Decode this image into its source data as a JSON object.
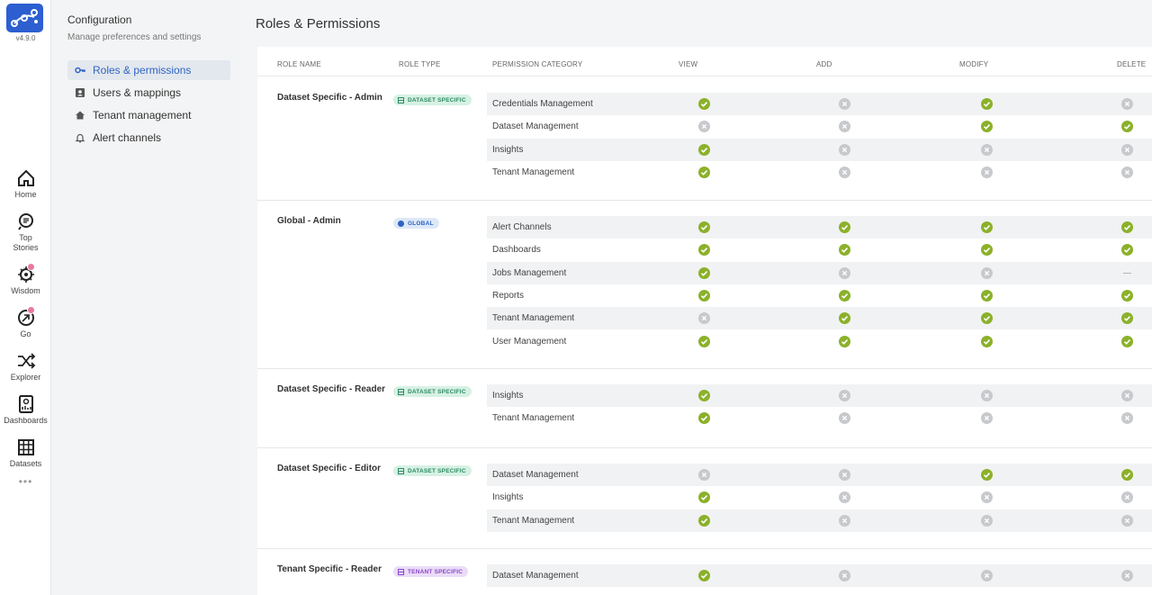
{
  "app": {
    "version": "v4.9.0"
  },
  "rail": {
    "items": [
      {
        "label": "Home",
        "icon": "home-icon"
      },
      {
        "label": "Top\nStories",
        "icon": "top-stories-icon"
      },
      {
        "label": "Wisdom",
        "icon": "wisdom-icon"
      },
      {
        "label": "Go",
        "icon": "go-icon"
      },
      {
        "label": "Explorer",
        "icon": "explorer-icon"
      },
      {
        "label": "Dashboards",
        "icon": "dashboards-icon"
      },
      {
        "label": "Datasets",
        "icon": "datasets-icon"
      }
    ],
    "more": "•••"
  },
  "sidebar": {
    "title": "Configuration",
    "subtitle": "Manage preferences and settings",
    "items": [
      {
        "label": "Roles & permissions",
        "icon": "key-icon",
        "active": true
      },
      {
        "label": "Users & mappings",
        "icon": "user-card-icon",
        "active": false
      },
      {
        "label": "Tenant management",
        "icon": "home-icon",
        "active": false
      },
      {
        "label": "Alert channels",
        "icon": "bell-icon",
        "active": false
      }
    ]
  },
  "page": {
    "title": "Roles & Permissions"
  },
  "table": {
    "headers": [
      "ROLE NAME",
      "ROLE TYPE",
      "PERMISSION CATEGORY",
      "VIEW",
      "ADD",
      "MODIFY",
      "DELETE"
    ],
    "colors": {
      "ok": "#8bb12a",
      "no": "#c7c9cc",
      "dataset": "#d6f1e4",
      "global": "#dde8f7",
      "tenant": "#eadcf7"
    },
    "groups": [
      {
        "name": "Dataset Specific - Admin",
        "type": "DATASET SPECIFIC",
        "type_kind": "dataset",
        "rows": [
          {
            "category": "Credentials Management",
            "perms": [
              "ok",
              "no",
              "ok",
              "no"
            ]
          },
          {
            "category": "Dataset Management",
            "perms": [
              "no",
              "no",
              "ok",
              "ok"
            ]
          },
          {
            "category": "Insights",
            "perms": [
              "ok",
              "no",
              "no",
              "no"
            ]
          },
          {
            "category": "Tenant Management",
            "perms": [
              "ok",
              "no",
              "no",
              "no"
            ]
          }
        ]
      },
      {
        "name": "Global - Admin",
        "type": "GLOBAL",
        "type_kind": "global",
        "rows": [
          {
            "category": "Alert Channels",
            "perms": [
              "ok",
              "ok",
              "ok",
              "ok"
            ]
          },
          {
            "category": "Dashboards",
            "perms": [
              "ok",
              "ok",
              "ok",
              "ok"
            ]
          },
          {
            "category": "Jobs Management",
            "perms": [
              "ok",
              "no",
              "no",
              "dash"
            ]
          },
          {
            "category": "Reports",
            "perms": [
              "ok",
              "ok",
              "ok",
              "ok"
            ]
          },
          {
            "category": "Tenant Management",
            "perms": [
              "no",
              "ok",
              "ok",
              "ok"
            ]
          },
          {
            "category": "User Management",
            "perms": [
              "ok",
              "ok",
              "ok",
              "ok"
            ]
          }
        ]
      },
      {
        "name": "Dataset Specific - Reader",
        "type": "DATASET SPECIFIC",
        "type_kind": "dataset",
        "rows": [
          {
            "category": "Insights",
            "perms": [
              "ok",
              "no",
              "no",
              "no"
            ]
          },
          {
            "category": "Tenant Management",
            "perms": [
              "ok",
              "no",
              "no",
              "no"
            ]
          }
        ]
      },
      {
        "name": "Dataset Specific - Editor",
        "type": "DATASET SPECIFIC",
        "type_kind": "dataset",
        "rows": [
          {
            "category": "Dataset Management",
            "perms": [
              "no",
              "no",
              "ok",
              "ok"
            ]
          },
          {
            "category": "Insights",
            "perms": [
              "ok",
              "no",
              "no",
              "no"
            ]
          },
          {
            "category": "Tenant Management",
            "perms": [
              "ok",
              "no",
              "no",
              "no"
            ]
          }
        ]
      },
      {
        "name": "Tenant Specific - Reader",
        "type": "TENANT SPECIFIC",
        "type_kind": "tenant",
        "rows": [
          {
            "category": "Dataset Management",
            "perms": [
              "ok",
              "no",
              "no",
              "no"
            ]
          }
        ]
      }
    ]
  }
}
